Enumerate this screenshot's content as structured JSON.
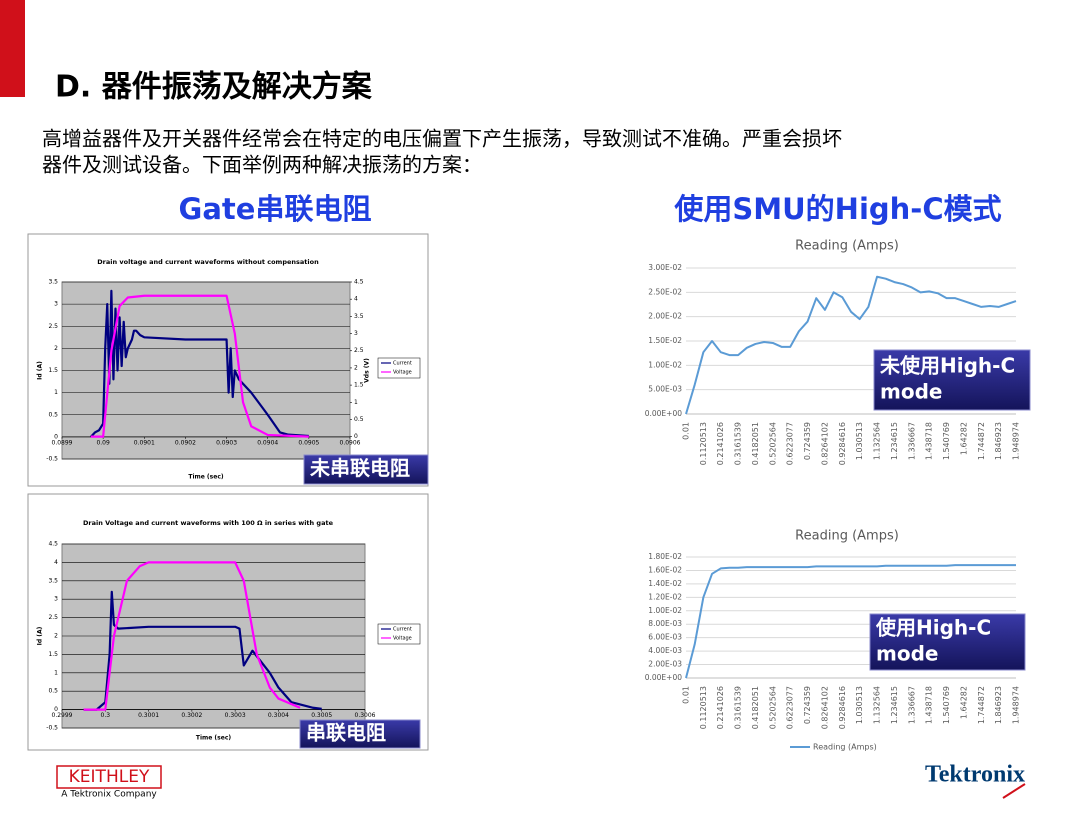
{
  "header": {
    "title": "D. 器件振荡及解决方案",
    "intro": [
      "高增益器件及开关器件经常会在特定的电压偏置下产生振荡，导致测试不准确。严重会损坏",
      "器件及测试设备。下面举例两种解决振荡的方案："
    ]
  },
  "left_heading": "Gate串联电阻",
  "right_heading": "使用SMU的High-C模式",
  "chart_data": [
    {
      "type": "line",
      "title": "Drain voltage and current waveforms without compensation",
      "xlabel": "Time (sec)",
      "ylabel": "Id (A)",
      "y2label": "Vds (V)",
      "annotation": [
        "未串联电阻"
      ],
      "xlim": [
        0.0899,
        0.0906
      ],
      "xticks": [
        0.0899,
        0.09,
        0.0901,
        0.0902,
        0.0903,
        0.0904,
        0.0905,
        0.0906
      ],
      "ylim": [
        -0.5,
        3.5
      ],
      "yticks": [
        -0.5,
        0,
        0.5,
        1,
        1.5,
        2,
        2.5,
        3,
        3.5
      ],
      "y2lim": [
        -0.65,
        4.5
      ],
      "y2ticks": [
        0,
        0.5,
        1,
        1.5,
        2,
        2.5,
        3,
        3.5,
        4,
        4.5
      ],
      "grid": true,
      "series": [
        {
          "name": "Current",
          "color": "#000080",
          "x": [
            0.08997,
            0.08998,
            0.08999,
            0.09,
            0.090005,
            0.09001,
            0.090015,
            0.09002,
            0.090025,
            0.09003,
            0.090035,
            0.09004,
            0.090045,
            0.09005,
            0.090055,
            0.09006,
            0.09007,
            0.090075,
            0.09008,
            0.09009,
            0.0901,
            0.0902,
            0.0903,
            0.090305,
            0.09031,
            0.090315,
            0.09032,
            0.09033,
            0.09036,
            0.0904,
            0.09043,
            0.09045,
            0.0905
          ],
          "values": [
            0,
            0.1,
            0.15,
            0.3,
            2.0,
            3.0,
            1.2,
            3.3,
            1.3,
            2.9,
            1.5,
            2.7,
            1.6,
            2.6,
            1.8,
            2.0,
            2.2,
            2.4,
            2.4,
            2.3,
            2.25,
            2.2,
            2.2,
            1.0,
            2.0,
            0.9,
            1.5,
            1.3,
            1.0,
            0.5,
            0.1,
            0.05,
            0.02
          ]
        },
        {
          "name": "Voltage",
          "color": "#ff00ff",
          "axis": "y2",
          "x": [
            0.08997,
            0.09,
            0.09002,
            0.09004,
            0.09006,
            0.0901,
            0.0903,
            0.09032,
            0.09034,
            0.09036,
            0.0904,
            0.0905
          ],
          "values": [
            0,
            0,
            2.5,
            3.8,
            4.05,
            4.1,
            4.1,
            3.0,
            1.0,
            0.3,
            0.05,
            0
          ]
        }
      ]
    },
    {
      "type": "line",
      "title": "Drain Voltage and current waveforms with 100 Ω in series with gate",
      "xlabel": "Time (sec)",
      "ylabel": "Id (A)",
      "annotation": [
        "串联电阻"
      ],
      "xlim": [
        0.2999,
        0.3006
      ],
      "xticks": [
        0.2999,
        0.3,
        0.3001,
        0.3002,
        0.3003,
        0.3004,
        0.3005,
        0.3006
      ],
      "ylim": [
        -0.5,
        4.5
      ],
      "yticks": [
        -0.5,
        0,
        0.5,
        1,
        1.5,
        2,
        2.5,
        3,
        3.5,
        4,
        4.5
      ],
      "grid": true,
      "series": [
        {
          "name": "Current",
          "color": "#000080",
          "x": [
            0.29995,
            0.29998,
            0.3,
            0.30001,
            0.300015,
            0.30002,
            0.30003,
            0.3001,
            0.3002,
            0.3003,
            0.30031,
            0.30032,
            0.30034,
            0.30038,
            0.3004,
            0.30043,
            0.30048,
            0.3005
          ],
          "values": [
            0,
            0,
            0.2,
            1.5,
            3.2,
            2.3,
            2.2,
            2.25,
            2.25,
            2.25,
            2.2,
            1.2,
            1.6,
            1.0,
            0.6,
            0.2,
            0.05,
            0.02
          ]
        },
        {
          "name": "Voltage",
          "color": "#ff00ff",
          "x": [
            0.29995,
            0.3,
            0.30002,
            0.30005,
            0.30008,
            0.3001,
            0.3003,
            0.30032,
            0.30035,
            0.30038,
            0.3004,
            0.30045
          ],
          "values": [
            0,
            0,
            2,
            3.5,
            3.9,
            4.0,
            4.0,
            3.5,
            1.5,
            0.6,
            0.3,
            0.05
          ]
        }
      ]
    },
    {
      "type": "line",
      "title": "Reading (Amps)",
      "annotation": [
        "未使用High-C",
        "mode"
      ],
      "categories": [
        "0.01",
        null,
        "0.1120513",
        null,
        "0.2141026",
        null,
        "0.3161539",
        null,
        "0.4182051",
        null,
        "0.5202564",
        null,
        "0.6223077",
        null,
        "0.724359",
        null,
        "0.8264102",
        null,
        "0.9284616",
        null,
        "1.030513",
        null,
        "1.132564",
        null,
        "1.234615",
        null,
        "1.336667",
        null,
        "1.438718",
        null,
        "1.540769",
        null,
        "1.64282",
        null,
        "1.744872",
        null,
        "1.846923",
        null,
        "1.948974"
      ],
      "ylim": [
        0,
        0.03
      ],
      "yticks": [
        {
          "value": 0,
          "label": "0.00E+00"
        },
        {
          "value": 0.005,
          "label": "5.00E-03"
        },
        {
          "value": 0.01,
          "label": "1.00E-02"
        },
        {
          "value": 0.015,
          "label": "1.50E-02"
        },
        {
          "value": 0.02,
          "label": "2.00E-02"
        },
        {
          "value": 0.025,
          "label": "2.50E-02"
        },
        {
          "value": 0.03,
          "label": "3.00E-02"
        }
      ],
      "grid": true,
      "series": [
        {
          "color": "#5b9bd5",
          "values": [
            0,
            0.006,
            0.0127,
            0.015,
            0.0127,
            0.0121,
            0.0121,
            0.0136,
            0.0144,
            0.0148,
            0.0146,
            0.0138,
            0.0138,
            0.017,
            0.019,
            0.0238,
            0.0214,
            0.025,
            0.024,
            0.021,
            0.0195,
            0.022,
            0.0282,
            0.0278,
            0.0271,
            0.0267,
            0.026,
            0.025,
            0.0252,
            0.0248,
            0.0238,
            0.0238,
            0.0232,
            0.0226,
            0.022,
            0.0222,
            0.022,
            0.0226,
            0.0232
          ]
        }
      ]
    },
    {
      "type": "line",
      "title": "Reading (Amps)",
      "annotation": [
        "使用High-C",
        "mode"
      ],
      "categories": [
        "0.01",
        null,
        "0.1120513",
        null,
        "0.2141026",
        null,
        "0.3161539",
        null,
        "0.4182051",
        null,
        "0.5202564",
        null,
        "0.6223077",
        null,
        "0.724359",
        null,
        "0.8264102",
        null,
        "0.9284616",
        null,
        "1.030513",
        null,
        "1.132564",
        null,
        "1.234615",
        null,
        "1.336667",
        null,
        "1.438718",
        null,
        "1.540769",
        null,
        "1.64282",
        null,
        "1.744872",
        null,
        "1.846923",
        null,
        "1.948974"
      ],
      "ylim": [
        0,
        0.018
      ],
      "yticks": [
        {
          "value": 0,
          "label": "0.00E+00"
        },
        {
          "value": 0.002,
          "label": "2.00E-03"
        },
        {
          "value": 0.004,
          "label": "4.00E-03"
        },
        {
          "value": 0.006,
          "label": "6.00E-03"
        },
        {
          "value": 0.008,
          "label": "8.00E-03"
        },
        {
          "value": 0.01,
          "label": "1.00E-02"
        },
        {
          "value": 0.012,
          "label": "1.20E-02"
        },
        {
          "value": 0.014,
          "label": "1.40E-02"
        },
        {
          "value": 0.016,
          "label": "1.60E-02"
        },
        {
          "value": 0.018,
          "label": "1.80E-02"
        }
      ],
      "grid": true,
      "series": [
        {
          "name": "Reading (Amps)",
          "color": "#5b9bd5",
          "values": [
            0,
            0.005,
            0.012,
            0.0155,
            0.0163,
            0.0164,
            0.0164,
            0.0165,
            0.0165,
            0.0165,
            0.0165,
            0.0165,
            0.0165,
            0.0165,
            0.0165,
            0.0166,
            0.0166,
            0.0166,
            0.0166,
            0.0166,
            0.0166,
            0.0166,
            0.0166,
            0.0167,
            0.0167,
            0.0167,
            0.0167,
            0.0167,
            0.0167,
            0.0167,
            0.0167,
            0.0168,
            0.0168,
            0.0168,
            0.0168,
            0.0168,
            0.0168,
            0.0168,
            0.0168
          ]
        }
      ]
    }
  ],
  "footer": {
    "left_logo": "KEITHLEY",
    "left_sub": "A Tektronix Company",
    "right_logo": "Tektronix"
  }
}
